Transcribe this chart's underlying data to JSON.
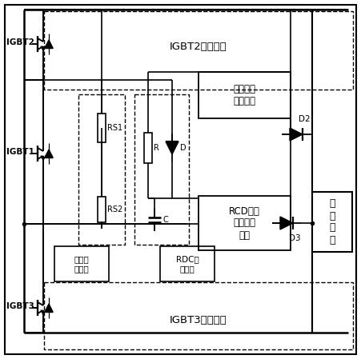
{
  "background_color": "#ffffff",
  "line_color": "#000000",
  "labels": {
    "IGBT2_circuit": "IGBT2取能电路",
    "IGBT3_circuit": "IGBT3取能电路",
    "static_r": "静态电阻\n取能电路",
    "rcd": "RCD缓冲\n电路取能\n电路",
    "qude": "取\n得\n电\n能",
    "static_eq": "静态均\n压电阻",
    "rdc_buf": "RDC缓\n冲电路",
    "IGBT1": "IGBT1",
    "IGBT2": "IGBT2",
    "IGBT3": "IGBT3",
    "RS1": "RS1",
    "RS2": "RS2",
    "R": "R",
    "D": "D",
    "C": "C",
    "D2": "D2",
    "D3": "D3"
  }
}
